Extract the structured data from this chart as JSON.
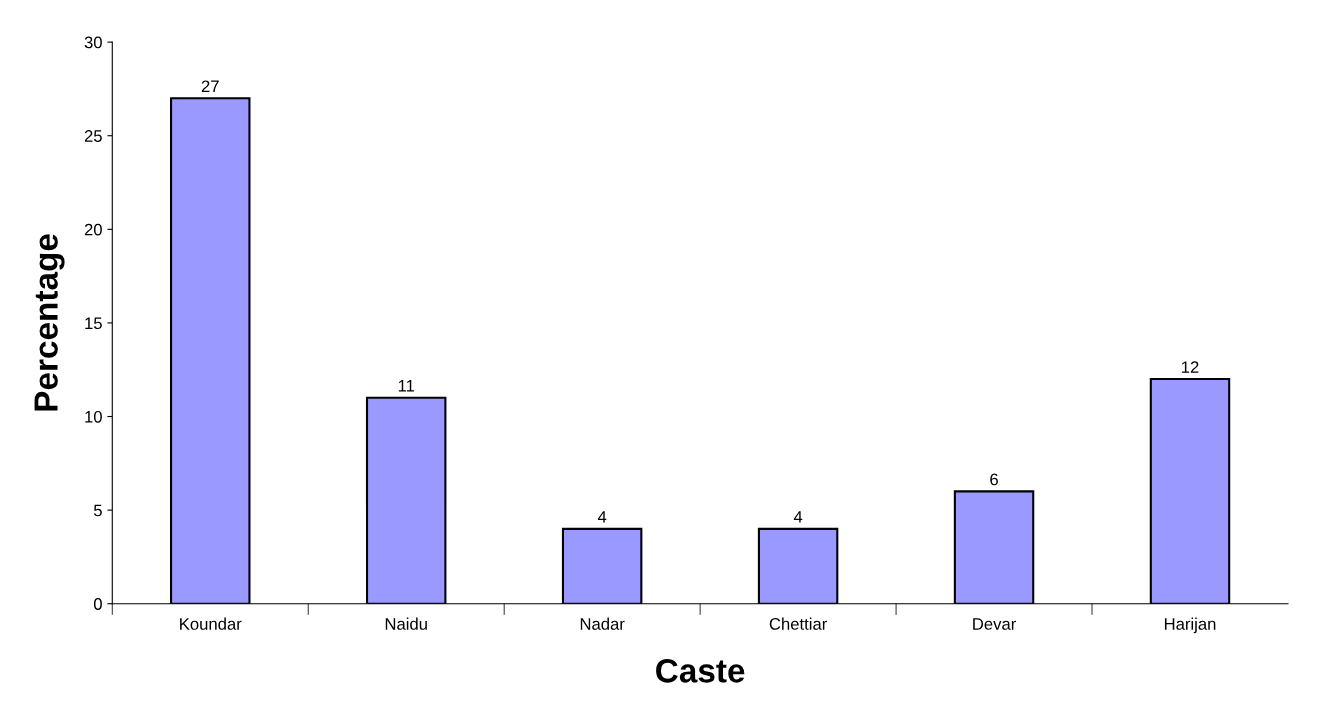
{
  "chart_data": {
    "type": "bar",
    "xlabel": "Caste",
    "ylabel": "Percentage",
    "categories": [
      "Koundar",
      "Naidu",
      "Nadar",
      "Chettiar",
      "Devar",
      "Harijan"
    ],
    "values": [
      27,
      11,
      4,
      4,
      6,
      12
    ],
    "color": "#9999ff",
    "ylim": [
      0,
      30
    ],
    "yticks": [
      0,
      5,
      10,
      15,
      20,
      25,
      30
    ],
    "data_labels": true,
    "grid": false,
    "legend": false
  }
}
